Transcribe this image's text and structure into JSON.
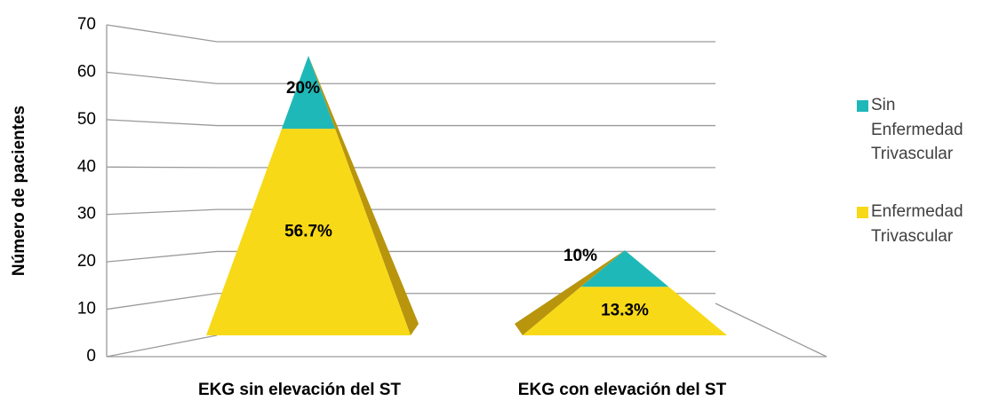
{
  "chart_data": {
    "type": "pyramid",
    "y_label": "Número de pacientes",
    "categories": [
      "EKG sin elevación del ST",
      "EKG con elevación del ST"
    ],
    "series": [
      {
        "name": "Enfermedad Trivascular",
        "color": "#f7d917",
        "values": [
          34,
          8
        ],
        "value_labels": [
          "56.7%",
          "13.3%"
        ]
      },
      {
        "name": "Sin Enfermedad Trivascular",
        "color": "#1fb8b8",
        "values": [
          12,
          6
        ],
        "value_labels": [
          "20%",
          "10%"
        ]
      }
    ],
    "ylim": [
      0,
      70
    ],
    "yticks": [
      0,
      10,
      20,
      30,
      40,
      50,
      60,
      70
    ],
    "grid": true
  }
}
